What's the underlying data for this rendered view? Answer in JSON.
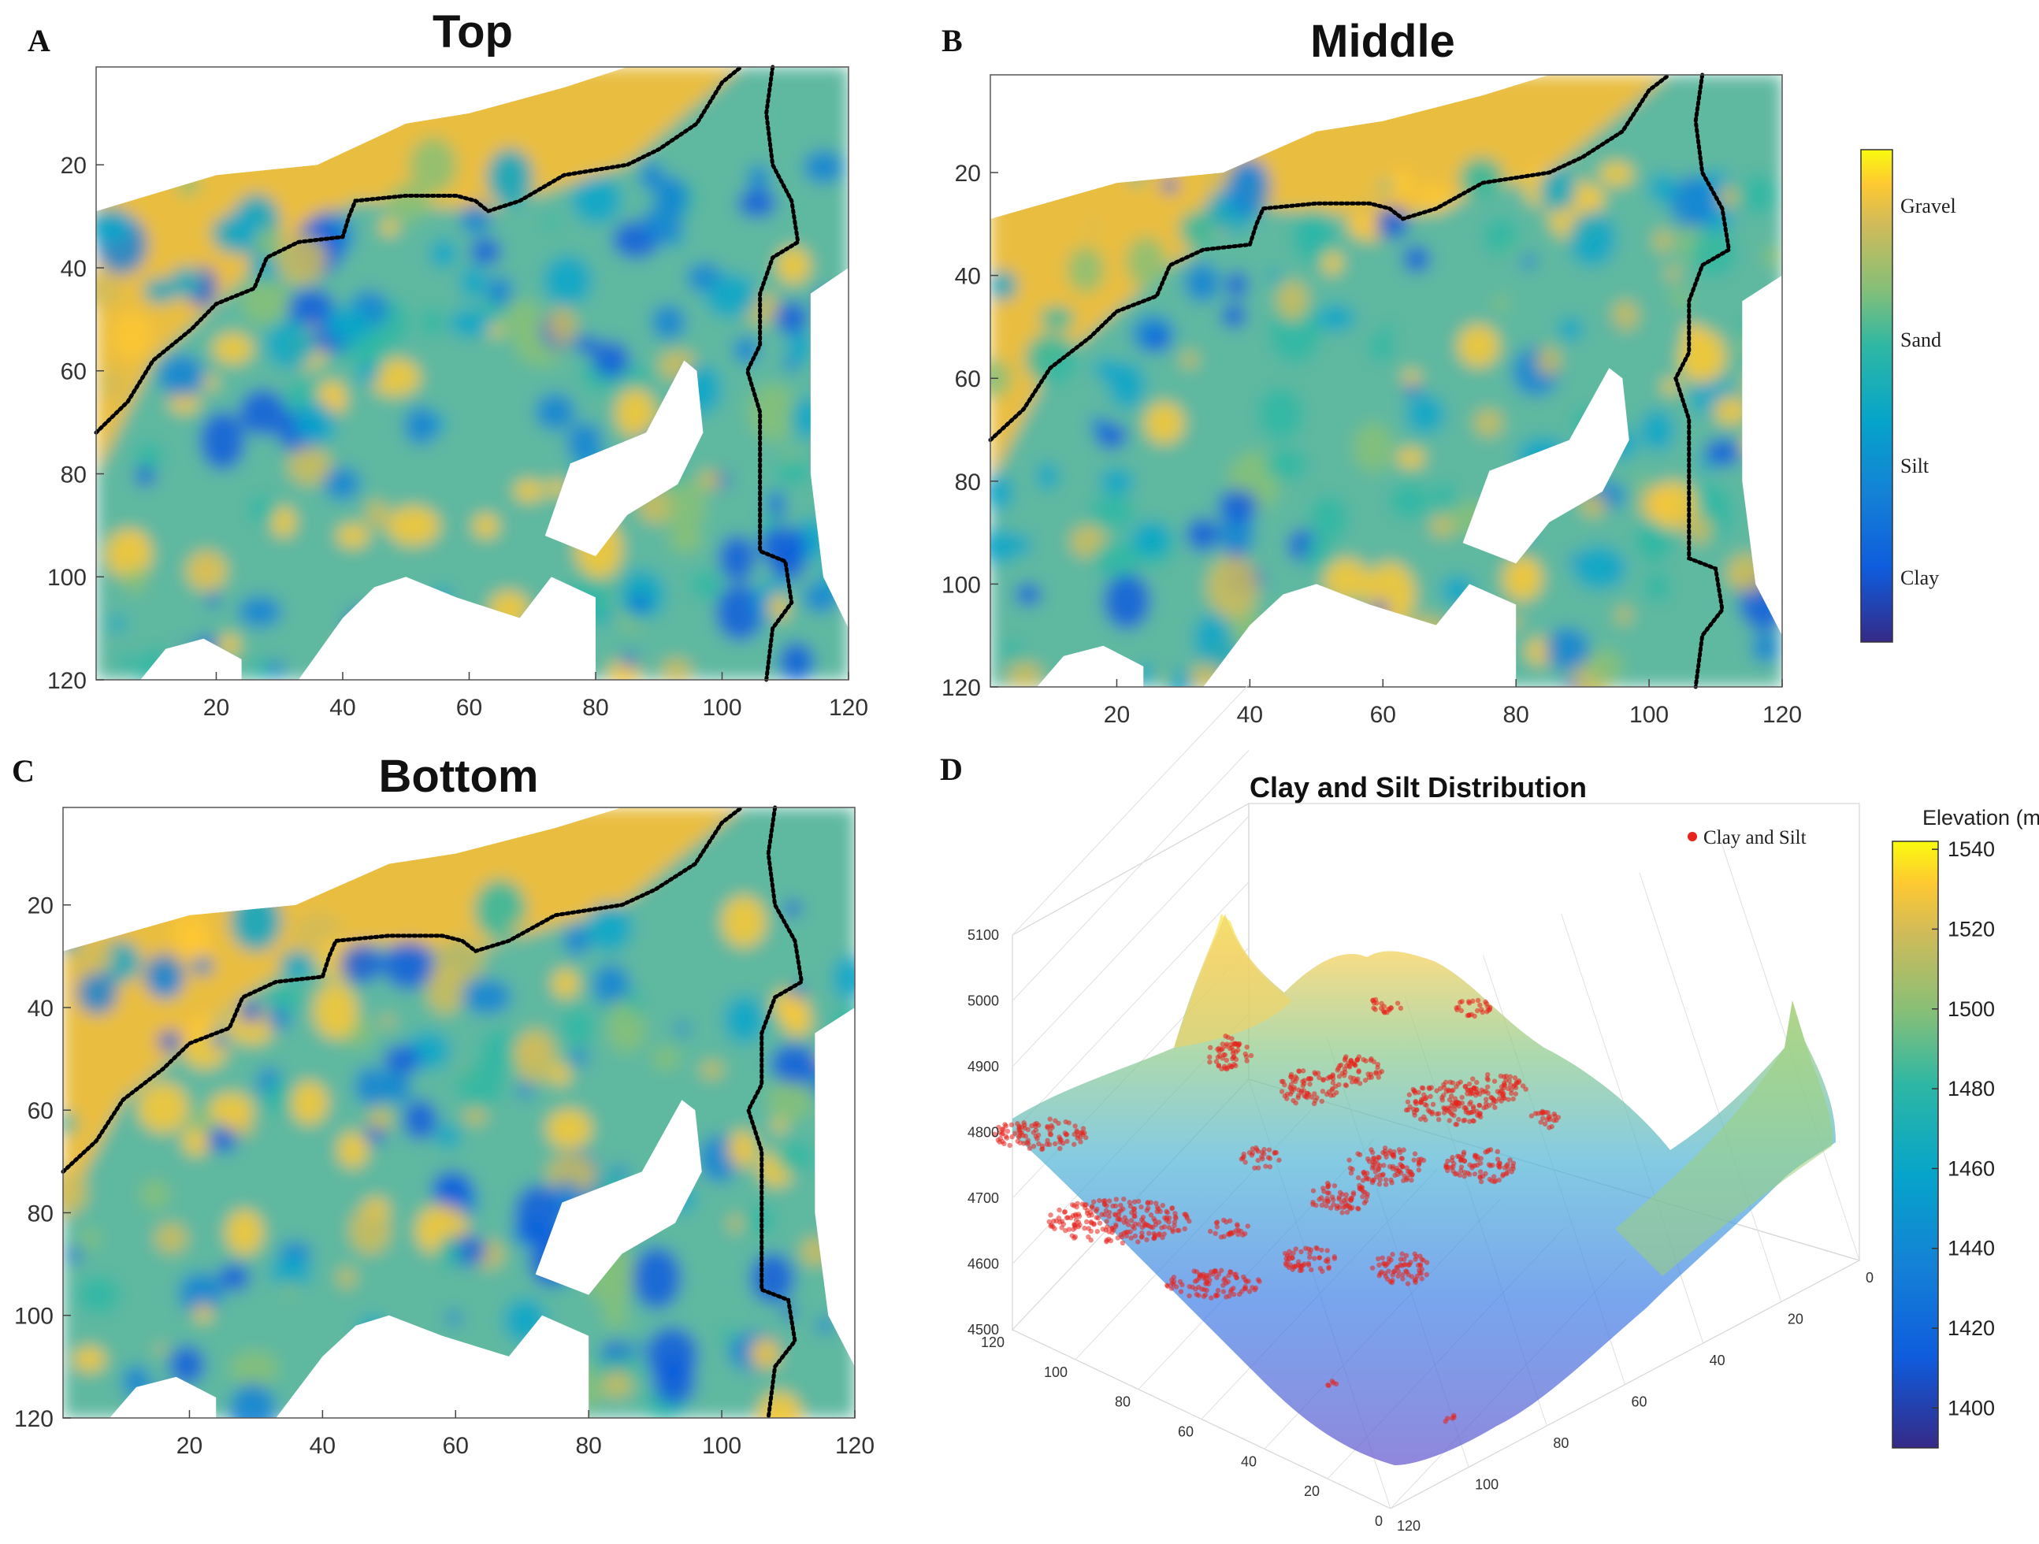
{
  "chart_data": [
    {
      "panel": "A",
      "type": "heatmap",
      "title": "Top",
      "x_ticks": [
        20,
        40,
        60,
        80,
        100,
        120
      ],
      "y_ticks": [
        20,
        40,
        60,
        80,
        100,
        120
      ],
      "xlim": [
        1,
        120
      ],
      "ylim": [
        1,
        120
      ],
      "y_reversed": true,
      "colormap": "parula",
      "dominant_class": "Sand/Gravel north of boundary, Silt/Sand south",
      "boundary_lines": [
        {
          "points": [
            [
              1,
              72
            ],
            [
              6,
              66
            ],
            [
              10,
              58
            ],
            [
              16,
              52
            ],
            [
              20,
              47
            ],
            [
              26,
              44
            ],
            [
              28,
              38
            ],
            [
              33,
              35
            ],
            [
              40,
              34
            ],
            [
              41,
              30
            ],
            [
              42,
              27
            ],
            [
              50,
              26
            ],
            [
              58,
              26
            ],
            [
              61,
              27
            ],
            [
              63,
              29
            ],
            [
              68,
              27
            ],
            [
              75,
              22
            ],
            [
              85,
              20
            ],
            [
              90,
              17
            ],
            [
              96,
              12
            ],
            [
              100,
              4
            ],
            [
              103,
              1
            ]
          ]
        },
        {
          "points": [
            [
              108,
              1
            ],
            [
              107,
              10
            ],
            [
              108,
              20
            ],
            [
              111,
              27
            ],
            [
              112,
              35
            ],
            [
              108,
              38
            ],
            [
              106,
              45
            ],
            [
              106,
              55
            ],
            [
              104,
              60
            ],
            [
              106,
              68
            ],
            [
              106,
              80
            ],
            [
              106,
              95
            ],
            [
              110,
              97
            ],
            [
              111,
              105
            ],
            [
              108,
              110
            ],
            [
              107,
              120
            ]
          ]
        }
      ]
    },
    {
      "panel": "B",
      "type": "heatmap",
      "title": "Middle",
      "x_ticks": [
        20,
        40,
        60,
        80,
        100,
        120
      ],
      "y_ticks": [
        20,
        40,
        60,
        80,
        100,
        120
      ],
      "xlim": [
        1,
        120
      ],
      "ylim": [
        1,
        120
      ],
      "y_reversed": true,
      "colormap": "parula",
      "dominant_class": "Silt/Sand with Clay patches",
      "colorbar_labels": [
        "Gravel",
        "Sand",
        "Silt",
        "Clay"
      ],
      "boundary_lines": [
        {
          "points": [
            [
              1,
              72
            ],
            [
              6,
              66
            ],
            [
              10,
              58
            ],
            [
              16,
              52
            ],
            [
              20,
              47
            ],
            [
              26,
              44
            ],
            [
              28,
              38
            ],
            [
              33,
              35
            ],
            [
              40,
              34
            ],
            [
              41,
              30
            ],
            [
              42,
              27
            ],
            [
              50,
              26
            ],
            [
              58,
              26
            ],
            [
              61,
              27
            ],
            [
              63,
              29
            ],
            [
              68,
              27
            ],
            [
              75,
              22
            ],
            [
              85,
              20
            ],
            [
              90,
              17
            ],
            [
              96,
              12
            ],
            [
              100,
              4
            ],
            [
              103,
              1
            ]
          ]
        },
        {
          "points": [
            [
              108,
              1
            ],
            [
              107,
              10
            ],
            [
              108,
              20
            ],
            [
              111,
              27
            ],
            [
              112,
              35
            ],
            [
              108,
              38
            ],
            [
              106,
              45
            ],
            [
              106,
              55
            ],
            [
              104,
              60
            ],
            [
              106,
              68
            ],
            [
              106,
              80
            ],
            [
              106,
              95
            ],
            [
              110,
              97
            ],
            [
              111,
              105
            ],
            [
              108,
              110
            ],
            [
              107,
              120
            ]
          ]
        }
      ]
    },
    {
      "panel": "C",
      "type": "heatmap",
      "title": "Bottom",
      "x_ticks": [
        20,
        40,
        60,
        80,
        100,
        120
      ],
      "y_ticks": [
        20,
        40,
        60,
        80,
        100,
        120
      ],
      "xlim": [
        1,
        120
      ],
      "ylim": [
        1,
        120
      ],
      "y_reversed": true,
      "colormap": "parula",
      "dominant_class": "Sand/Gravel with Silt patches",
      "boundary_lines": [
        {
          "points": [
            [
              1,
              72
            ],
            [
              6,
              66
            ],
            [
              10,
              58
            ],
            [
              16,
              52
            ],
            [
              20,
              47
            ],
            [
              26,
              44
            ],
            [
              28,
              38
            ],
            [
              33,
              35
            ],
            [
              40,
              34
            ],
            [
              41,
              30
            ],
            [
              42,
              27
            ],
            [
              50,
              26
            ],
            [
              58,
              26
            ],
            [
              61,
              27
            ],
            [
              63,
              29
            ],
            [
              68,
              27
            ],
            [
              75,
              22
            ],
            [
              85,
              20
            ],
            [
              90,
              17
            ],
            [
              96,
              12
            ],
            [
              100,
              4
            ],
            [
              103,
              1
            ]
          ]
        },
        {
          "points": [
            [
              108,
              1
            ],
            [
              107,
              10
            ],
            [
              108,
              20
            ],
            [
              111,
              27
            ],
            [
              112,
              35
            ],
            [
              108,
              38
            ],
            [
              106,
              45
            ],
            [
              106,
              55
            ],
            [
              104,
              60
            ],
            [
              106,
              68
            ],
            [
              106,
              80
            ],
            [
              106,
              95
            ],
            [
              110,
              97
            ],
            [
              111,
              105
            ],
            [
              108,
              110
            ],
            [
              107,
              120
            ]
          ]
        }
      ]
    },
    {
      "panel": "D",
      "type": "surface3d",
      "title": "Clay and Silt Distribution",
      "z_ticks": [
        4500,
        4600,
        4700,
        4800,
        4900,
        5000,
        5100
      ],
      "x_ticks": [
        0,
        20,
        40,
        60,
        80,
        100,
        120
      ],
      "y_ticks": [
        0,
        20,
        40,
        60,
        80,
        100,
        120
      ],
      "legend": {
        "label": "Clay and Silt",
        "color": "#e8231c",
        "position": "top-right"
      },
      "colorbar_title": "Elevation (m)",
      "colorbar_ticks": [
        1540,
        1520,
        1500,
        1480,
        1460,
        1440,
        1420,
        1400
      ],
      "colorbar_range": [
        1390,
        1542
      ],
      "colormap": "parula",
      "grid": true
    }
  ],
  "figure": {
    "panel_labels": [
      "A",
      "B",
      "C",
      "D"
    ],
    "colors": {
      "boundary": "#000000",
      "clay_silt_points": "#e8231c"
    }
  }
}
